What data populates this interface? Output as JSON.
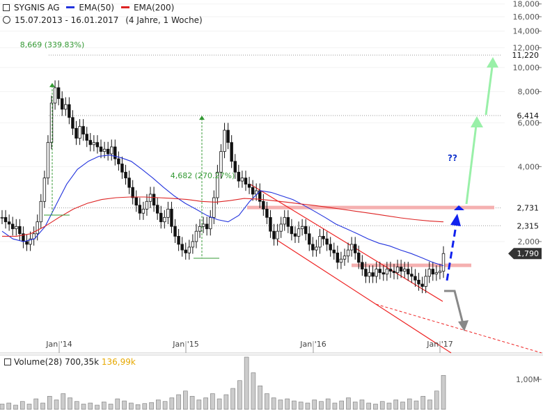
{
  "header": {
    "symbol": "SYGNIS AG",
    "ema50_label": "EMA(50)",
    "ema200_label": "EMA(200)",
    "period": "15.07.2013 - 16.01.2017",
    "period_note": "(4 Jahre, 1 Woche)"
  },
  "volume_legend": {
    "label": "Volume(28)",
    "value1": "700,35k",
    "value2": "136,99k"
  },
  "colors": {
    "ema50": "#2233dd",
    "ema200": "#dd2222",
    "annotation": "#339933",
    "channel": "#ee2222",
    "resistance_zone": "#f5b0b0",
    "bull_arrow": "#99f0a8",
    "intermediate_arrow": "#1122ee",
    "bear_arrow": "#888888",
    "price_badge": "#333333"
  },
  "chart_data": {
    "type": "candlestick",
    "scale": "log",
    "x_ticks": [
      "Jan '14",
      "Jan '15",
      "Jan '16",
      "Jan '17"
    ],
    "y_ticks": [
      "18,000",
      "16,000",
      "14,000",
      "12,000",
      "10,000",
      "8,000",
      "6,000",
      "4,000",
      "2,000"
    ],
    "price_labels": [
      "11,220",
      "6,414",
      "2,731",
      "2,315",
      "1,790"
    ],
    "last_price": "1,790",
    "annotations": [
      {
        "text": "8,669 (339.83%)",
        "from": 1.97,
        "to": 8.669
      },
      {
        "text": "4,682 (270.27%)",
        "from": 1.73,
        "to": 6.41
      }
    ],
    "question_marks": "??",
    "volume_tick": "1,00M",
    "price_series": [
      2.5,
      2.4,
      2.35,
      2.25,
      2.3,
      2.15,
      2.0,
      1.95,
      2.05,
      2.15,
      2.4,
      2.9,
      3.6,
      5.0,
      7.2,
      8.3,
      7.5,
      6.8,
      7.1,
      6.3,
      5.7,
      5.2,
      5.8,
      5.4,
      5.1,
      4.9,
      5.0,
      4.8,
      4.6,
      4.7,
      4.5,
      4.8,
      4.3,
      4.1,
      3.8,
      3.6,
      3.3,
      3.0,
      2.8,
      2.6,
      2.7,
      2.9,
      3.1,
      2.8,
      2.6,
      2.4,
      2.5,
      2.7,
      2.3,
      2.1,
      1.95,
      1.85,
      1.8,
      1.9,
      2.0,
      2.2,
      2.3,
      2.35,
      2.25,
      2.5,
      3.0,
      3.8,
      4.6,
      5.6,
      5.0,
      4.2,
      3.8,
      3.5,
      3.6,
      3.4,
      3.3,
      3.1,
      3.2,
      2.9,
      2.7,
      2.5,
      2.2,
      2.05,
      2.2,
      2.35,
      2.5,
      2.3,
      2.15,
      2.1,
      2.25,
      2.3,
      2.15,
      1.95,
      1.85,
      1.9,
      2.1,
      2.05,
      1.95,
      1.85,
      1.8,
      1.65,
      1.7,
      1.75,
      1.85,
      1.95,
      1.8,
      1.65,
      1.55,
      1.45,
      1.5,
      1.45,
      1.55,
      1.5,
      1.48,
      1.55,
      1.52,
      1.5,
      1.58,
      1.52,
      1.55,
      1.48,
      1.45,
      1.4,
      1.35,
      1.32,
      1.45,
      1.55,
      1.48,
      1.5,
      1.52,
      1.79
    ],
    "ema50": [
      2.2,
      2.05,
      2.0,
      2.05,
      2.3,
      2.8,
      3.4,
      3.9,
      4.2,
      4.4,
      4.45,
      4.35,
      4.2,
      3.9,
      3.6,
      3.3,
      3.05,
      2.85,
      2.7,
      2.55,
      2.45,
      2.4,
      2.55,
      2.9,
      3.2,
      3.15,
      3.05,
      2.95,
      2.8,
      2.65,
      2.5,
      2.35,
      2.25,
      2.15,
      2.05,
      1.97,
      1.92,
      1.85,
      1.79,
      1.72,
      1.65,
      1.6
    ],
    "ema200": [
      2.1,
      2.1,
      2.15,
      2.3,
      2.5,
      2.7,
      2.85,
      2.95,
      3.0,
      3.02,
      3.02,
      3.0,
      2.98,
      2.95,
      2.9,
      2.88,
      2.92,
      2.98,
      2.96,
      2.92,
      2.88,
      2.83,
      2.79,
      2.74,
      2.69,
      2.64,
      2.59,
      2.54,
      2.49,
      2.45,
      2.42,
      2.4
    ],
    "volume": [
      0.1,
      0.12,
      0.08,
      0.15,
      0.1,
      0.2,
      0.12,
      0.25,
      0.18,
      0.3,
      0.22,
      0.15,
      0.1,
      0.12,
      0.08,
      0.14,
      0.1,
      0.2,
      0.16,
      0.12,
      0.09,
      0.11,
      0.13,
      0.18,
      0.15,
      0.22,
      0.28,
      0.35,
      0.25,
      0.18,
      0.22,
      0.3,
      0.2,
      0.28,
      0.4,
      0.55,
      1.0,
      0.7,
      0.45,
      0.3,
      0.22,
      0.18,
      0.2,
      0.16,
      0.14,
      0.12,
      0.18,
      0.15,
      0.2,
      0.12,
      0.16,
      0.22,
      0.14,
      0.18,
      0.12,
      0.1,
      0.15,
      0.12,
      0.18,
      0.14,
      0.2,
      0.16,
      0.25,
      0.18,
      0.35,
      0.65
    ]
  }
}
